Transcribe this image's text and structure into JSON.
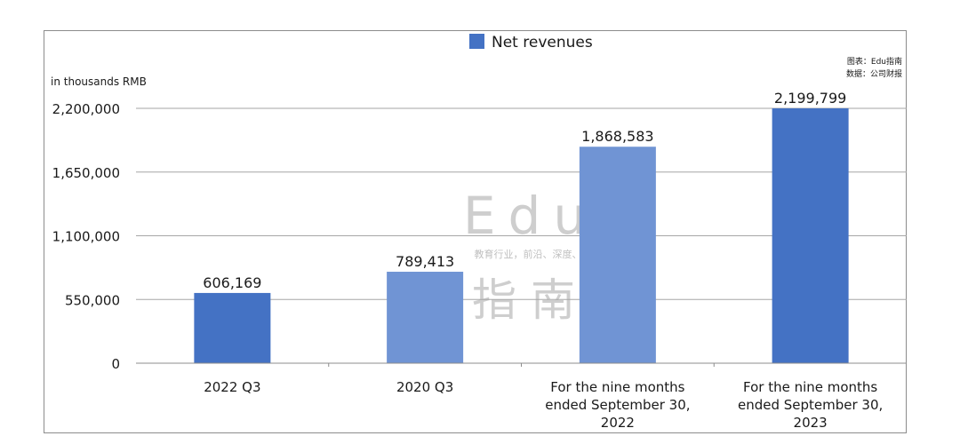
{
  "chart_data": {
    "type": "bar",
    "legend": {
      "label": "Net revenues",
      "color": "#4472C4",
      "position": "top-center"
    },
    "ylabel": "in thousands RMB",
    "source_note": {
      "line1": "图表：Edu指南",
      "line2": "数据：公司财报"
    },
    "ylim": [
      0,
      2200000
    ],
    "yticks": [
      {
        "value": 0,
        "label": "0"
      },
      {
        "value": 550000,
        "label": "550,000"
      },
      {
        "value": 1100000,
        "label": "1,100,000"
      },
      {
        "value": 1650000,
        "label": "1,650,000"
      },
      {
        "value": 2200000,
        "label": "2,200,000"
      }
    ],
    "grid": true,
    "categories": [
      {
        "label_lines": [
          "2022 Q3"
        ],
        "value": 606169,
        "value_label": "606,169",
        "color": "#4472C4"
      },
      {
        "label_lines": [
          "2020 Q3"
        ],
        "value": 789413,
        "value_label": "789,413",
        "color": "#7094D4"
      },
      {
        "label_lines": [
          "For the nine months",
          "ended September 30,",
          "2022"
        ],
        "value": 1868583,
        "value_label": "1,868,583",
        "color": "#7094D4"
      },
      {
        "label_lines": [
          "For the nine months",
          "ended September 30,",
          "2023"
        ],
        "value": 2199799,
        "value_label": "2,199,799",
        "color": "#4472C4"
      }
    ]
  },
  "watermark": {
    "logo_top": "Edu",
    "logo_bottom": "指南",
    "tagline": "教育行业，前沿、深度、独家"
  }
}
